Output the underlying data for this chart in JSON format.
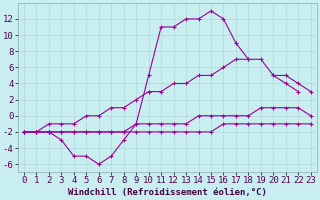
{
  "xlabel": "Windchill (Refroidissement éolien,°C)",
  "background_color": "#c8eef0",
  "line_color": "#990099",
  "grid_color": "#b0d8dc",
  "x_hours": [
    0,
    1,
    2,
    3,
    4,
    5,
    6,
    7,
    8,
    9,
    10,
    11,
    12,
    13,
    14,
    15,
    16,
    17,
    18,
    19,
    20,
    21,
    22,
    23
  ],
  "series1": [
    -2,
    -2,
    -2,
    -3,
    -5,
    -5,
    -6,
    -5,
    -3,
    -1,
    5,
    11,
    11,
    12,
    12,
    13,
    12,
    9,
    7,
    null,
    5,
    5,
    4,
    3
  ],
  "series2": [
    -2,
    -2,
    -1,
    -1,
    -1,
    0,
    0,
    1,
    1,
    2,
    3,
    3,
    4,
    4,
    5,
    5,
    6,
    7,
    7,
    7,
    5,
    4,
    3,
    null
  ],
  "series3": [
    -2,
    -2,
    -2,
    -2,
    -2,
    -2,
    -2,
    -2,
    -2,
    -1,
    -1,
    -1,
    -1,
    -1,
    0,
    0,
    0,
    0,
    0,
    1,
    1,
    1,
    1,
    0
  ],
  "series4": [
    -2,
    -2,
    -2,
    -2,
    -2,
    -2,
    -2,
    -2,
    -2,
    -2,
    -2,
    -2,
    -2,
    -2,
    -2,
    -2,
    -1,
    -1,
    -1,
    -1,
    -1,
    -1,
    -1,
    -1
  ],
  "ylim": [
    -7,
    14
  ],
  "xlim": [
    -0.5,
    23.5
  ],
  "yticks": [
    -6,
    -4,
    -2,
    0,
    2,
    4,
    6,
    8,
    10,
    12
  ],
  "xticks": [
    0,
    1,
    2,
    3,
    4,
    5,
    6,
    7,
    8,
    9,
    10,
    11,
    12,
    13,
    14,
    15,
    16,
    17,
    18,
    19,
    20,
    21,
    22,
    23
  ],
  "xlabel_fontsize": 6.5,
  "tick_fontsize": 6.5
}
